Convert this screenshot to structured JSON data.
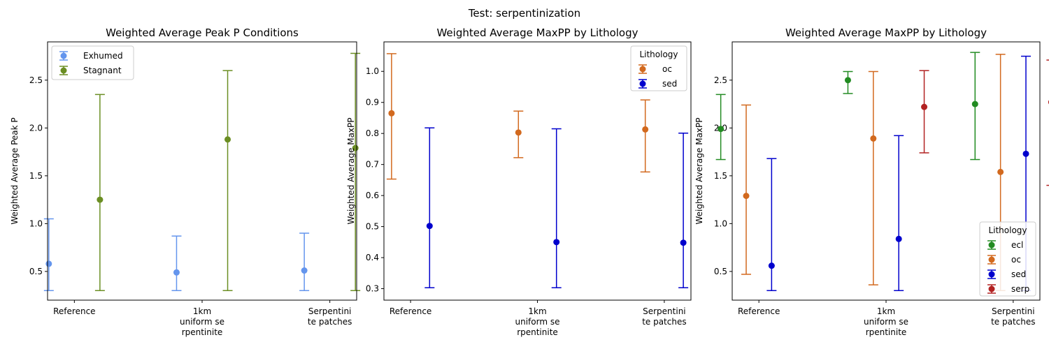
{
  "suptitle": "Test: serpentinization",
  "chart_data": [
    {
      "type": "errorbar",
      "title": "Weighted Average Peak P Conditions",
      "xlabel": "",
      "ylabel": "Weighted Average Peak P",
      "categories": [
        "Reference",
        "1km\nuniform se\nrpentinite",
        "Serpentini\nte patches"
      ],
      "ylim": [
        0.2,
        2.9
      ],
      "yticks": [
        0.5,
        1.0,
        1.5,
        2.0,
        2.5
      ],
      "yticklabels": [
        "0.5",
        "1.0",
        "1.5",
        "2.0",
        "2.5"
      ],
      "legend": {
        "title": "",
        "position": "top-left"
      },
      "series": [
        {
          "name": "Exhumed",
          "color": "#6495ed",
          "offset": -0.2,
          "values": [
            0.58,
            0.49,
            0.51
          ],
          "lower": [
            0.3,
            0.3,
            0.3
          ],
          "upper": [
            1.05,
            0.87,
            0.9
          ]
        },
        {
          "name": "Stagnant",
          "color": "#6b8e23",
          "offset": 0.2,
          "values": [
            1.25,
            1.88,
            1.79
          ],
          "lower": [
            0.3,
            0.3,
            0.3
          ],
          "upper": [
            2.35,
            2.6,
            2.78
          ]
        }
      ]
    },
    {
      "type": "errorbar",
      "title": "Weighted Average MaxPP by Lithology",
      "xlabel": "",
      "ylabel": "Weighted Average MaxPP",
      "categories": [
        "Reference",
        "1km\nuniform se\nrpentinite",
        "Serpentini\nte patches"
      ],
      "ylim": [
        0.263,
        1.095
      ],
      "yticks": [
        0.3,
        0.4,
        0.5,
        0.6,
        0.7,
        0.8,
        0.9,
        1.0
      ],
      "yticklabels": [
        "0.3",
        "0.4",
        "0.5",
        "0.6",
        "0.7",
        "0.8",
        "0.9",
        "1.0"
      ],
      "legend": {
        "title": "Lithology",
        "position": "top-right"
      },
      "series": [
        {
          "name": "oc",
          "color": "#d2691e",
          "offset": -0.15,
          "values": [
            0.865,
            0.803,
            0.813
          ],
          "lower": [
            0.653,
            0.722,
            0.676
          ],
          "upper": [
            1.057,
            0.872,
            0.908
          ]
        },
        {
          "name": "sed",
          "color": "#0000cd",
          "offset": 0.15,
          "values": [
            0.502,
            0.45,
            0.448
          ],
          "lower": [
            0.303,
            0.303,
            0.303
          ],
          "upper": [
            0.818,
            0.815,
            0.801
          ]
        }
      ]
    },
    {
      "type": "errorbar",
      "title": "Weighted Average MaxPP by Lithology",
      "xlabel": "",
      "ylabel": "Weighted Average MaxPP",
      "categories": [
        "Reference",
        "1km\nuniform se\nrpentinite",
        "Serpentini\nte patches"
      ],
      "ylim": [
        0.2,
        2.9
      ],
      "yticks": [
        0.5,
        1.0,
        1.5,
        2.0,
        2.5
      ],
      "yticklabels": [
        "0.5",
        "1.0",
        "1.5",
        "2.0",
        "2.5"
      ],
      "legend": {
        "title": "Lithology",
        "position": "bottom-right"
      },
      "series": [
        {
          "name": "ecl",
          "color": "#228b22",
          "offset": -0.3,
          "values": [
            1.99,
            2.5,
            2.25
          ],
          "lower": [
            1.67,
            2.36,
            1.67
          ],
          "upper": [
            2.35,
            2.59,
            2.79
          ],
          "present": [
            true,
            true,
            true
          ]
        },
        {
          "name": "oc",
          "color": "#d2691e",
          "offset": -0.1,
          "values": [
            1.29,
            1.89,
            1.54
          ],
          "lower": [
            0.47,
            0.36,
            0.3
          ],
          "upper": [
            2.24,
            2.59,
            2.77
          ],
          "present": [
            true,
            true,
            true
          ]
        },
        {
          "name": "sed",
          "color": "#0000cd",
          "offset": 0.1,
          "values": [
            0.56,
            0.84,
            1.73
          ],
          "lower": [
            0.3,
            0.3,
            0.3
          ],
          "upper": [
            1.68,
            1.92,
            2.75
          ],
          "present": [
            true,
            true,
            true
          ]
        },
        {
          "name": "serp",
          "color": "#b22222",
          "offset": 0.3,
          "values": [
            null,
            2.22,
            2.27
          ],
          "lower": [
            null,
            1.74,
            1.4
          ],
          "upper": [
            null,
            2.6,
            2.71
          ],
          "present": [
            false,
            true,
            true
          ]
        }
      ]
    }
  ]
}
